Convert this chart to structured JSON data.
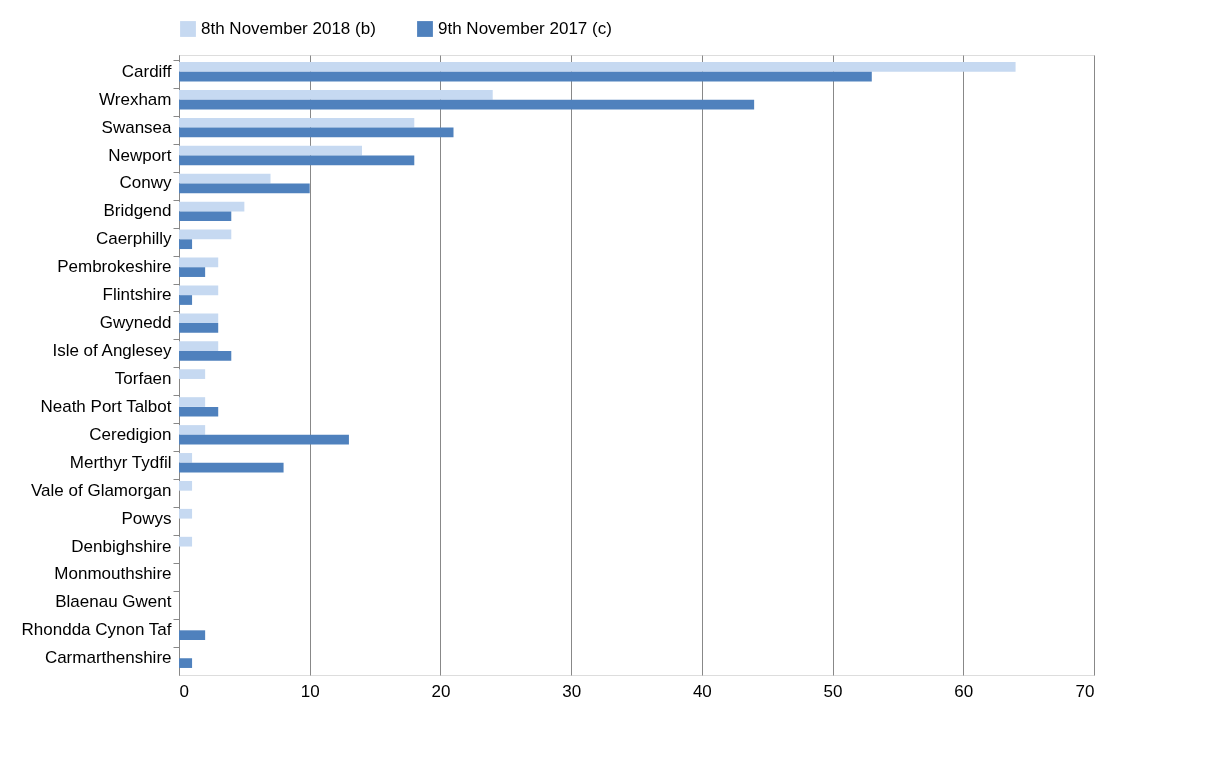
{
  "chart_data": {
    "type": "bar",
    "orientation": "horizontal",
    "categories": [
      "Cardiff",
      "Wrexham",
      "Swansea",
      "Newport",
      "Conwy",
      "Bridgend",
      "Caerphilly",
      "Pembrokeshire",
      "Flintshire",
      "Gwynedd",
      "Isle of Anglesey",
      "Torfaen",
      "Neath Port Talbot",
      "Ceredigion",
      "Merthyr Tydfil",
      "Vale of Glamorgan",
      "Powys",
      "Denbighshire",
      "Monmouthshire",
      "Blaenau Gwent",
      "Rhondda Cynon Taf",
      "Carmarthenshire"
    ],
    "series": [
      {
        "name": "8th November 2018 (b)",
        "color": "#c6d9f1",
        "values": [
          64,
          24,
          18,
          14,
          7,
          5,
          4,
          3,
          3,
          3,
          3,
          2,
          2,
          2,
          1,
          1,
          1,
          1,
          0,
          0,
          0,
          0
        ]
      },
      {
        "name": "9th November 2017 (c)",
        "color": "#4f81bd",
        "values": [
          53,
          44,
          21,
          18,
          10,
          4,
          1,
          2,
          1,
          3,
          4,
          0,
          3,
          13,
          8,
          0,
          0,
          0,
          0,
          0,
          2,
          1
        ]
      }
    ],
    "xlim": [
      0,
      70
    ],
    "xticks": [
      0,
      10,
      20,
      30,
      40,
      50,
      60,
      70
    ],
    "grid": "x",
    "legend": "top"
  }
}
